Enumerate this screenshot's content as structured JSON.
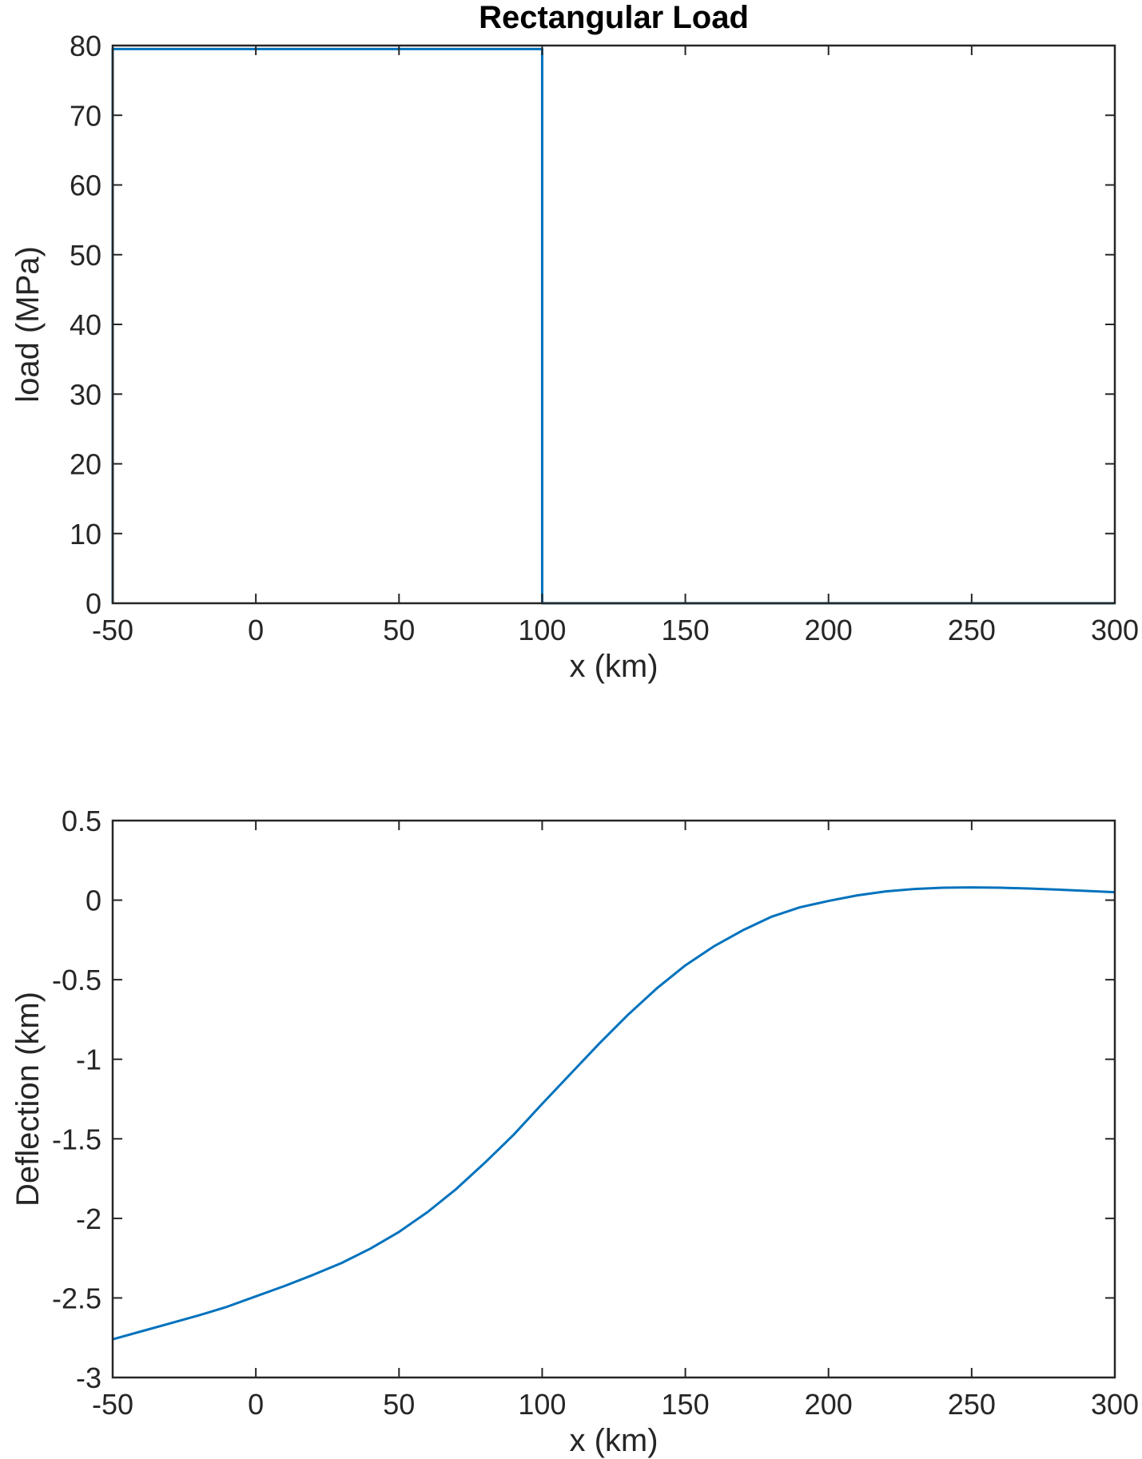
{
  "chart_data": [
    {
      "type": "line",
      "title": "Rectangular Load",
      "xlabel": "x (km)",
      "ylabel": "load (MPa)",
      "xlim": [
        -50,
        300
      ],
      "ylim": [
        0,
        80
      ],
      "xticks": [
        -50,
        0,
        50,
        100,
        150,
        200,
        250,
        300
      ],
      "xtick_labels": [
        "-50",
        "0",
        "50",
        "100",
        "150",
        "200",
        "250",
        "300"
      ],
      "yticks": [
        0,
        10,
        20,
        30,
        40,
        50,
        60,
        70,
        80
      ],
      "ytick_labels": [
        "0",
        "10",
        "20",
        "30",
        "40",
        "50",
        "60",
        "70",
        "80"
      ],
      "grid": false,
      "color": "#0072BD",
      "series": [
        {
          "x": [
            -50,
            -50,
            100,
            100,
            300
          ],
          "y": [
            0,
            79.5,
            79.5,
            0,
            0
          ]
        }
      ]
    },
    {
      "type": "line",
      "title": "",
      "xlabel": "x (km)",
      "ylabel": "Deflection (km)",
      "xlim": [
        -50,
        300
      ],
      "ylim": [
        -3,
        0.5
      ],
      "xticks": [
        -50,
        0,
        50,
        100,
        150,
        200,
        250,
        300
      ],
      "xtick_labels": [
        "-50",
        "0",
        "50",
        "100",
        "150",
        "200",
        "250",
        "300"
      ],
      "yticks": [
        -3,
        -2.5,
        -2,
        -1.5,
        -1,
        -0.5,
        0,
        0.5
      ],
      "ytick_labels": [
        "-3",
        "-2.5",
        "-2",
        "-1.5",
        "-1",
        "-0.5",
        "0",
        "0.5"
      ],
      "grid": false,
      "color": "#0072BD",
      "series": [
        {
          "x": [
            -50,
            -40,
            -30,
            -20,
            -10,
            0,
            10,
            20,
            30,
            40,
            50,
            60,
            70,
            80,
            90,
            100,
            110,
            120,
            130,
            140,
            150,
            160,
            170,
            180,
            190,
            200,
            210,
            220,
            230,
            240,
            250,
            260,
            270,
            280,
            290,
            300
          ],
          "y": [
            -2.76,
            -2.71,
            -2.66,
            -2.61,
            -2.555,
            -2.49,
            -2.425,
            -2.355,
            -2.28,
            -2.19,
            -2.085,
            -1.96,
            -1.815,
            -1.65,
            -1.475,
            -1.28,
            -1.09,
            -0.9,
            -0.72,
            -0.555,
            -0.41,
            -0.29,
            -0.19,
            -0.105,
            -0.045,
            -0.005,
            0.03,
            0.055,
            0.07,
            0.078,
            0.08,
            0.078,
            0.073,
            0.066,
            0.058,
            0.05
          ]
        }
      ]
    }
  ]
}
